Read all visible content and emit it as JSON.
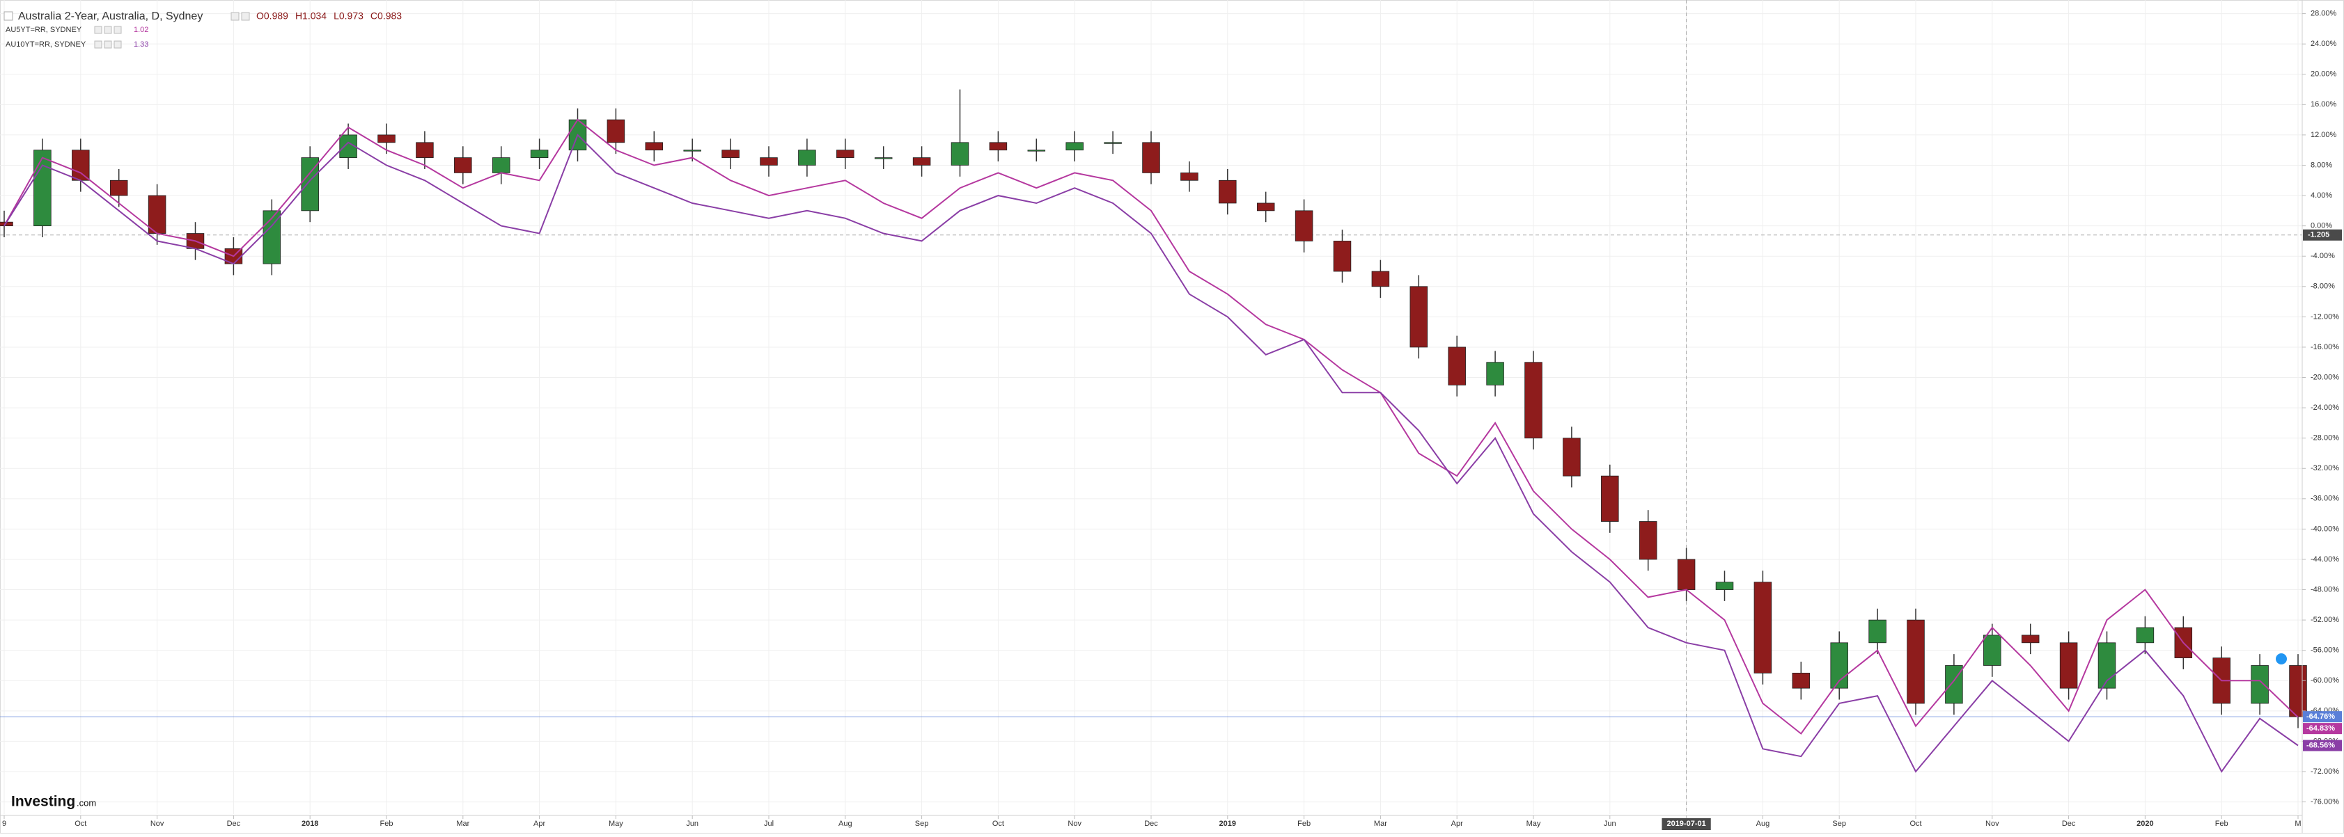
{
  "chart_data": {
    "type": "candlestick",
    "title": "Australia 2-Year, Australia, D, Sydney",
    "ohlc_legend": [
      "O0.989",
      "H1.034",
      "L0.973",
      "C0.983"
    ],
    "brand": [
      "Investing",
      ".com"
    ],
    "categories": [
      "9",
      null,
      "Oct",
      null,
      "Nov",
      null,
      "Dec",
      null,
      "2018",
      null,
      "Feb",
      null,
      "Mar",
      null,
      "Apr",
      null,
      "May",
      null,
      "Jun",
      null,
      "Jul",
      null,
      "Aug",
      null,
      "Sep",
      null,
      "Oct",
      null,
      "Nov",
      null,
      "Dec",
      null,
      "2019",
      null,
      "Feb",
      null,
      "Mar",
      null,
      "Apr",
      null,
      "May",
      null,
      "Jun",
      null,
      "2019-07-01",
      null,
      "Aug",
      null,
      "Sep",
      null,
      "Oct",
      null,
      "Nov",
      null,
      "Dec",
      null,
      "2020",
      null,
      "Feb",
      null,
      "M"
    ],
    "candles": {
      "up_color": "#2e8b3e",
      "down_color": "#8e1c1c",
      "color": "#5a7fd8",
      "open": [
        0.5,
        0,
        10,
        6,
        4,
        -1,
        -3,
        -5,
        2,
        9,
        12,
        11,
        9,
        7,
        9,
        10,
        14,
        11,
        10,
        10,
        9,
        8,
        10,
        9,
        9,
        8,
        11,
        10,
        10,
        11,
        11,
        7,
        6,
        3,
        2,
        -2,
        -6,
        -8,
        -16,
        -21,
        -18,
        -28,
        -33,
        -39,
        -44,
        -48,
        -47,
        -59,
        -61,
        -55,
        -52,
        -63,
        -58,
        -54,
        -55,
        -61,
        -55,
        -53,
        -57,
        -63,
        -58
      ],
      "high": [
        2,
        11.5,
        11.5,
        7.5,
        5.5,
        0.5,
        -1.5,
        3.5,
        10.5,
        13.5,
        13.5,
        12.5,
        10.5,
        10.5,
        11.5,
        15.5,
        15.5,
        12.5,
        11.5,
        11.5,
        10.5,
        11.5,
        11.5,
        10.5,
        10.5,
        18,
        12.5,
        11.5,
        12.5,
        12.5,
        12.5,
        8.5,
        7.5,
        4.5,
        3.5,
        -0.5,
        -4.5,
        -6.5,
        -14.5,
        -16.5,
        -16.5,
        -26.5,
        -31.5,
        -37.5,
        -42.5,
        -45.5,
        -45.5,
        -57.5,
        -53.5,
        -50.5,
        -50.5,
        -56.5,
        -52.5,
        -52.5,
        -53.5,
        -53.5,
        -51.5,
        -51.5,
        -55.5,
        -56.5,
        -56.5
      ],
      "low": [
        -1.5,
        -1.5,
        4.5,
        2.5,
        -2.5,
        -4.5,
        -6.5,
        -6.5,
        0.5,
        7.5,
        9.5,
        7.5,
        5.5,
        5.5,
        7.5,
        8.5,
        9.5,
        8.5,
        8.5,
        7.5,
        6.5,
        6.5,
        7.5,
        7.5,
        6.5,
        6.5,
        8.5,
        8.5,
        8.5,
        9.5,
        5.5,
        4.5,
        1.5,
        0.5,
        -3.5,
        -7.5,
        -9.5,
        -17.5,
        -22.5,
        -22.5,
        -29.5,
        -34.5,
        -40.5,
        -45.5,
        -49.5,
        -49.5,
        -60.5,
        -62.5,
        -62.5,
        -56.5,
        -64.5,
        -64.5,
        -59.5,
        -56.5,
        -62.5,
        -62.5,
        -56.5,
        -58.5,
        -64.5,
        -64.5,
        -66.26
      ],
      "close": [
        0,
        10,
        6,
        4,
        -1,
        -3,
        -5,
        2,
        9,
        12,
        11,
        9,
        7,
        9,
        10,
        14,
        11,
        10,
        10,
        9,
        8,
        10,
        9,
        9,
        8,
        11,
        10,
        10,
        11,
        11,
        7,
        6,
        3,
        2,
        -2,
        -6,
        -8,
        -16,
        -21,
        -18,
        -28,
        -33,
        -39,
        -44,
        -48,
        -47,
        -59,
        -61,
        -55,
        -52,
        -63,
        -58,
        -54,
        -55,
        -61,
        -55,
        -53,
        -57,
        -63,
        -58,
        -64.76
      ],
      "value_labels": [
        null,
        null,
        null,
        null,
        null,
        null,
        null,
        null,
        null,
        null,
        null,
        null,
        null,
        null,
        null,
        null,
        null,
        null,
        null,
        null,
        null,
        null,
        null,
        null,
        null,
        null,
        null,
        null,
        null,
        null,
        null,
        null,
        null,
        null,
        null,
        null,
        null,
        null,
        null,
        null,
        null,
        null,
        null,
        null,
        null,
        null,
        null,
        null,
        null,
        null,
        null,
        null,
        null,
        null,
        null,
        null,
        null,
        null,
        null,
        null,
        "-64.76%"
      ]
    },
    "series": [
      {
        "name": "AU5YT=RR, SYDNEY",
        "legend_value": "1.02",
        "type": "line",
        "color": "#b5389f",
        "values": [
          0,
          9,
          7,
          3,
          -1,
          -2,
          -4,
          1,
          7,
          13,
          10,
          8,
          5,
          7,
          6,
          14,
          10,
          8,
          9,
          6,
          4,
          5,
          6,
          3,
          1,
          5,
          7,
          5,
          7,
          6,
          2,
          -6,
          -9,
          -13,
          -15,
          -19,
          -22,
          -30,
          -33,
          -26,
          -35,
          -40,
          -44,
          -49,
          -48,
          -52,
          -63,
          -67,
          -60,
          -56,
          -66,
          -60,
          -53,
          -58,
          -64,
          -52,
          -48,
          -55,
          -60,
          -60,
          -64.83
        ],
        "value_labels": [
          null,
          null,
          null,
          null,
          null,
          null,
          null,
          null,
          null,
          null,
          null,
          null,
          null,
          null,
          null,
          null,
          null,
          null,
          null,
          null,
          null,
          null,
          null,
          null,
          null,
          null,
          null,
          null,
          null,
          null,
          null,
          null,
          null,
          null,
          null,
          null,
          null,
          null,
          null,
          null,
          null,
          null,
          null,
          null,
          null,
          null,
          null,
          null,
          null,
          null,
          null,
          null,
          null,
          null,
          null,
          null,
          null,
          null,
          null,
          null,
          "-64.83%"
        ]
      },
      {
        "name": "AU10YT=RR, SYDNEY",
        "legend_value": "1.33",
        "type": "line",
        "color": "#8a3ea6",
        "values": [
          0,
          8,
          6,
          2,
          -2,
          -3,
          -5,
          0,
          6,
          11,
          8,
          6,
          3,
          0,
          -1,
          12,
          7,
          5,
          3,
          2,
          1,
          2,
          1,
          -1,
          -2,
          2,
          4,
          3,
          5,
          3,
          -1,
          -9,
          -12,
          -17,
          -15,
          -22,
          -22,
          -27,
          -34,
          -28,
          -38,
          -43,
          -47,
          -53,
          -55,
          -56,
          -69,
          -70,
          -63,
          -62,
          -72,
          -66,
          -60,
          -64,
          -68,
          -60,
          -56,
          -62,
          -72,
          -65,
          -68.56
        ],
        "value_labels": [
          null,
          null,
          null,
          null,
          null,
          null,
          null,
          null,
          null,
          null,
          null,
          null,
          null,
          null,
          null,
          null,
          null,
          null,
          null,
          null,
          null,
          null,
          null,
          null,
          null,
          null,
          null,
          null,
          null,
          null,
          null,
          null,
          null,
          null,
          null,
          null,
          null,
          null,
          null,
          null,
          null,
          null,
          null,
          null,
          null,
          null,
          null,
          null,
          null,
          null,
          null,
          null,
          null,
          null,
          null,
          null,
          null,
          null,
          null,
          null,
          "-68.56%"
        ]
      }
    ],
    "crosshair": {
      "x": "2019-07-01",
      "y": -1.205
    },
    "ylim": [
      -77.6,
      29.8
    ],
    "yticks": [
      {
        "value": 28,
        "label": "28.00%"
      },
      {
        "value": 24,
        "label": "24.00%"
      },
      {
        "value": 20,
        "label": "20.00%"
      },
      {
        "value": 16,
        "label": "16.00%"
      },
      {
        "value": 12,
        "label": "12.00%"
      },
      {
        "value": 8,
        "label": "8.00%"
      },
      {
        "value": 4,
        "label": "4.00%"
      },
      {
        "value": 0,
        "label": "0.00%"
      },
      {
        "value": -4,
        "label": "-4.00%"
      },
      {
        "value": -8,
        "label": "-8.00%"
      },
      {
        "value": -12,
        "label": "-12.00%"
      },
      {
        "value": -16,
        "label": "-16.00%"
      },
      {
        "value": -20,
        "label": "-20.00%"
      },
      {
        "value": -24,
        "label": "-24.00%"
      },
      {
        "value": -28,
        "label": "-28.00%"
      },
      {
        "value": -32,
        "label": "-32.00%"
      },
      {
        "value": -36,
        "label": "-36.00%"
      },
      {
        "value": -40,
        "label": "-40.00%"
      },
      {
        "value": -44,
        "label": "-44.00%"
      },
      {
        "value": -48,
        "label": "-48.00%"
      },
      {
        "value": -52,
        "label": "-52.00%"
      },
      {
        "value": -56,
        "label": "-56.00%"
      },
      {
        "value": -60,
        "label": "-60.00%"
      },
      {
        "value": -64,
        "label": "-64.00%"
      },
      {
        "value": -68,
        "label": "-68.00%"
      },
      {
        "value": -72,
        "label": "-72.00%"
      },
      {
        "value": -76,
        "label": "-76.00%"
      }
    ],
    "grid": true
  }
}
